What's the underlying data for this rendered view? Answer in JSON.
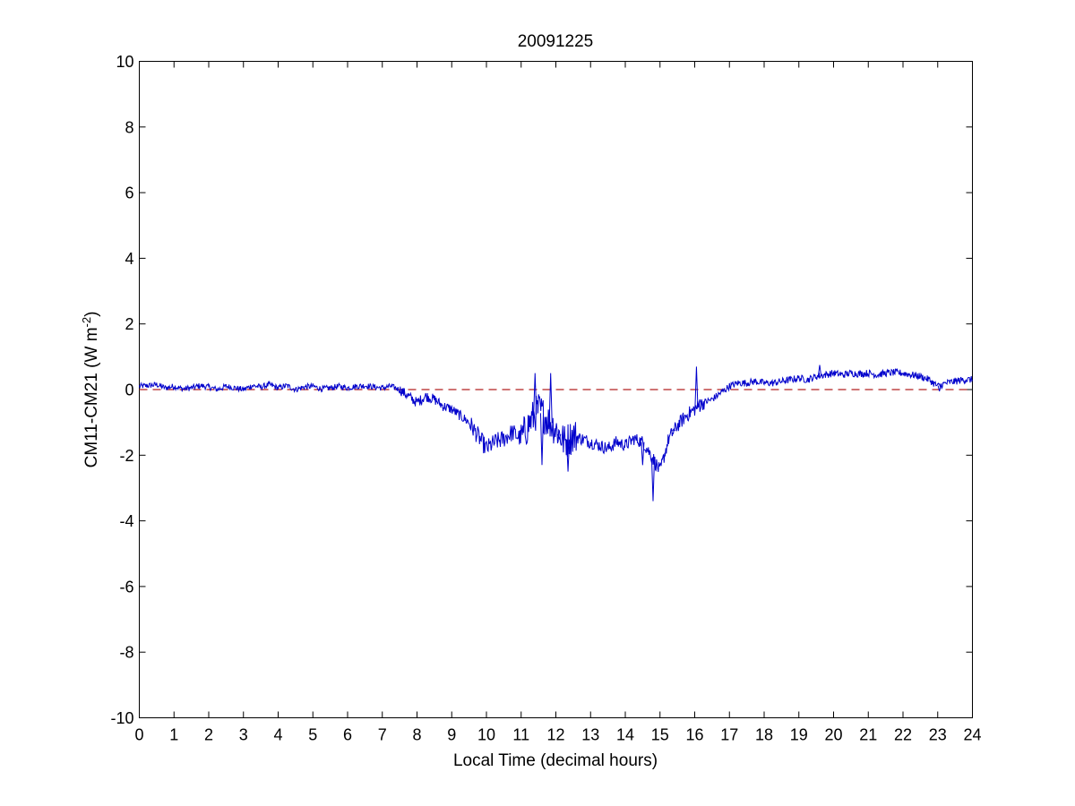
{
  "chart_data": {
    "type": "line",
    "title": "20091225",
    "xlabel": "Local Time (decimal hours)",
    "ylabel": {
      "base": "CM11-CM21 (W m",
      "exponent": "-2",
      "close": ")"
    },
    "xlim": [
      0,
      24
    ],
    "ylim": [
      -10,
      10
    ],
    "xticks": [
      0,
      1,
      2,
      3,
      4,
      5,
      6,
      7,
      8,
      9,
      10,
      11,
      12,
      13,
      14,
      15,
      16,
      17,
      18,
      19,
      20,
      21,
      22,
      23,
      24
    ],
    "yticks": [
      -10,
      -8,
      -6,
      -4,
      -2,
      0,
      2,
      4,
      6,
      8,
      10
    ],
    "grid": false,
    "legend": "none",
    "reference_line": {
      "y": 0,
      "style": "dashed",
      "color": "#b22222"
    },
    "series": [
      {
        "color": "#0000cc",
        "x": [
          0,
          0.25,
          0.5,
          0.75,
          1,
          1.25,
          1.5,
          1.75,
          2,
          2.25,
          2.5,
          2.75,
          3,
          3.25,
          3.5,
          3.75,
          4,
          4.25,
          4.5,
          4.75,
          5,
          5.25,
          5.5,
          5.75,
          6,
          6.25,
          6.5,
          6.75,
          7,
          7.25,
          7.5,
          7.75,
          8,
          8.25,
          8.5,
          8.75,
          9,
          9.25,
          9.5,
          9.75,
          10,
          10.25,
          10.5,
          10.75,
          11,
          11.25,
          11.5,
          11.75,
          12,
          12.25,
          12.5,
          12.75,
          13,
          13.25,
          13.5,
          13.75,
          14,
          14.25,
          14.5,
          14.75,
          15,
          15.25,
          15.5,
          15.75,
          16,
          16.25,
          16.5,
          16.75,
          17,
          17.25,
          17.5,
          17.75,
          18,
          18.25,
          18.5,
          18.75,
          19,
          19.25,
          19.5,
          19.75,
          20,
          20.25,
          20.5,
          20.75,
          21,
          21.25,
          21.5,
          21.75,
          22,
          22.25,
          22.5,
          22.75,
          23,
          23.25,
          23.5,
          23.75,
          24
        ],
        "y": [
          0.1,
          0.12,
          0.15,
          0.05,
          0.1,
          0.02,
          0.05,
          0.12,
          0.08,
          0,
          0.1,
          0.05,
          0,
          0.12,
          0.08,
          0.15,
          0.05,
          0.12,
          0,
          0.08,
          0.1,
          0.02,
          0.05,
          0.1,
          0.05,
          0.1,
          0.12,
          0.08,
          0.05,
          0.1,
          0,
          -0.2,
          -0.4,
          -0.2,
          -0.3,
          -0.5,
          -0.6,
          -0.8,
          -1,
          -1.4,
          -1.8,
          -1.6,
          -1.5,
          -1.3,
          -1.5,
          -1,
          -0.6,
          -0.9,
          -1.2,
          -1.6,
          -1.4,
          -1.5,
          -1.6,
          -1.7,
          -1.8,
          -1.6,
          -1.7,
          -1.5,
          -1.6,
          -2,
          -2.5,
          -1.5,
          -1.1,
          -0.8,
          -0.6,
          -0.4,
          -0.3,
          -0.1,
          0.1,
          0.2,
          0.2,
          0.25,
          0.2,
          0.2,
          0.25,
          0.3,
          0.35,
          0.3,
          0.4,
          0.45,
          0.5,
          0.45,
          0.5,
          0.48,
          0.5,
          0.45,
          0.5,
          0.52,
          0.5,
          0.45,
          0.4,
          0.3,
          0.1,
          0.2,
          0.25,
          0.3,
          0.3
        ],
        "spikes": [
          {
            "x": 11.4,
            "y": 0.5
          },
          {
            "x": 11.6,
            "y": -2.3
          },
          {
            "x": 11.85,
            "y": 0.5
          },
          {
            "x": 12.1,
            "y": -1.5
          },
          {
            "x": 12.35,
            "y": -2.5
          },
          {
            "x": 14.5,
            "y": -2.3
          },
          {
            "x": 14.8,
            "y": -3.4
          },
          {
            "x": 15.4,
            "y": -1.2
          },
          {
            "x": 16.05,
            "y": 0.7
          },
          {
            "x": 16.15,
            "y": -0.3
          },
          {
            "x": 19.6,
            "y": 0.75
          },
          {
            "x": 23.05,
            "y": -0.05
          }
        ]
      }
    ]
  }
}
